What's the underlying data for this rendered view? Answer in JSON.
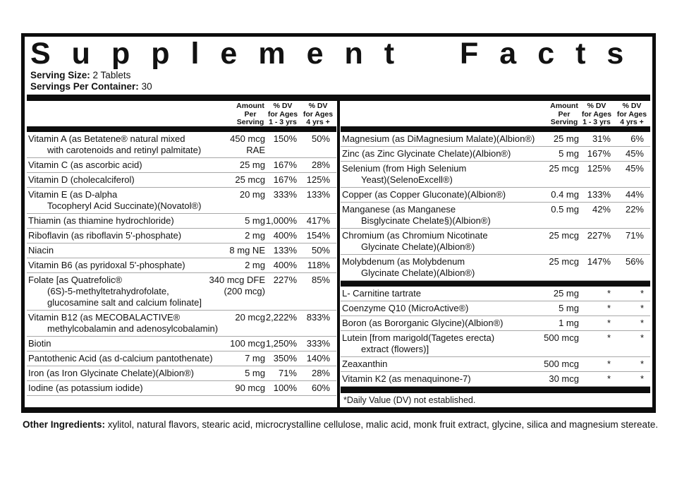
{
  "title": "Supplement Facts",
  "serving": {
    "size_label": "Serving Size:",
    "size_value": "2 Tablets",
    "container_label": "Servings Per Container:",
    "container_value": "30"
  },
  "columns": {
    "amount": "Amount\nPer\nServing",
    "dv_1_3": "% DV\nfor Ages\n1 - 3 yrs",
    "dv_4plus": "% DV\nfor Ages\n4 yrs +"
  },
  "left_table": {
    "rows": [
      {
        "name": "Vitamin A (as Betatene® natural mixed\nwith carotenoids and retinyl palmitate)",
        "amount": "450 mcg\nRAE",
        "dv1": "150%",
        "dv2": "50%"
      },
      {
        "name": "Vitamin C (as ascorbic acid)",
        "amount": "25 mg",
        "dv1": "167%",
        "dv2": "28%"
      },
      {
        "name": "Vitamin D (cholecalciferol)",
        "amount": "25 mcg",
        "dv1": "167%",
        "dv2": "125%"
      },
      {
        "name": "Vitamin E (as D-alpha\nTocopheryl Acid Succinate)(Novatol®)",
        "amount": "20 mg",
        "dv1": "333%",
        "dv2": "133%"
      },
      {
        "name": "Thiamin (as thiamine hydrochloride)",
        "amount": "5 mg",
        "dv1": "1,000%",
        "dv2": "417%"
      },
      {
        "name": "Riboflavin (as riboflavin 5'-phosphate)",
        "amount": "2 mg",
        "dv1": "400%",
        "dv2": "154%"
      },
      {
        "name": "Niacin",
        "amount": "8 mg NE",
        "dv1": "133%",
        "dv2": "50%"
      },
      {
        "name": "Vitamin B6 (as pyridoxal 5'-phosphate)",
        "amount": "2 mg",
        "dv1": "400%",
        "dv2": "118%"
      },
      {
        "name": "Folate [as Quatrefolic®\n(6S)-5-methyltetrahydrofolate,\nglucosamine salt and calcium folinate]",
        "amount": "340 mcg DFE\n(200 mcg)",
        "dv1": "227%",
        "dv2": "85%"
      },
      {
        "name": "Vitamin B12 (as MECOBALACTIVE®\nmethylcobalamin and adenosylcobalamin)",
        "amount": "20 mcg",
        "dv1": "2,222%",
        "dv2": "833%"
      },
      {
        "name": "Biotin",
        "amount": "100 mcg",
        "dv1": "1,250%",
        "dv2": "333%"
      },
      {
        "name": "Pantothenic Acid (as d-calcium pantothenate)",
        "amount": "7 mg",
        "dv1": "350%",
        "dv2": "140%"
      },
      {
        "name": "Iron (as Iron Glycinate Chelate)(Albion®)",
        "amount": "5 mg",
        "dv1": "71%",
        "dv2": "28%"
      },
      {
        "name": "Iodine (as potassium iodide)",
        "amount": "90 mcg",
        "dv1": "100%",
        "dv2": "60%"
      }
    ]
  },
  "right_table": {
    "mineral_rows": [
      {
        "name": "Magnesium (as DiMagnesium Malate)(Albion®)",
        "amount": "25 mg",
        "dv1": "31%",
        "dv2": "6%"
      },
      {
        "name": "Zinc (as Zinc Glycinate Chelate)(Albion®)",
        "amount": "5 mg",
        "dv1": "167%",
        "dv2": "45%"
      },
      {
        "name": "Selenium (from High Selenium\nYeast)(SelenoExcell®)",
        "amount": "25 mcg",
        "dv1": "125%",
        "dv2": "45%"
      },
      {
        "name": "Copper (as Copper Gluconate)(Albion®)",
        "amount": "0.4 mg",
        "dv1": "133%",
        "dv2": "44%"
      },
      {
        "name": "Manganese (as Manganese\nBisglycinate Chelate§)(Albion®)",
        "amount": "0.5 mg",
        "dv1": "42%",
        "dv2": "22%"
      },
      {
        "name": "Chromium (as Chromium Nicotinate\nGlycinate Chelate)(Albion®)",
        "amount": "25 mcg",
        "dv1": "227%",
        "dv2": "71%"
      },
      {
        "name": "Molybdenum (as Molybdenum\nGlycinate Chelate)(Albion®)",
        "amount": "25 mcg",
        "dv1": "147%",
        "dv2": "56%"
      }
    ],
    "other_rows": [
      {
        "name": "L- Carnitine tartrate",
        "amount": "25 mg",
        "dv1": "*",
        "dv2": "*"
      },
      {
        "name": "Coenzyme Q10 (MicroActive®)",
        "amount": "5 mg",
        "dv1": "*",
        "dv2": "*"
      },
      {
        "name": "Boron (as Bororganic Glycine)(Albion®)",
        "amount": "1 mg",
        "dv1": "*",
        "dv2": "*"
      },
      {
        "name": "Lutein [from marigold(Tagetes erecta)\nextract (flowers)]",
        "amount": "500 mcg",
        "dv1": "*",
        "dv2": "*"
      },
      {
        "name": "Zeaxanthin",
        "amount": "500 mcg",
        "dv1": "*",
        "dv2": "*"
      },
      {
        "name": "Vitamin K2 (as menaquinone-7)",
        "amount": "30 mcg",
        "dv1": "*",
        "dv2": "*"
      }
    ],
    "footnote": "*Daily Value (DV) not established."
  },
  "other_ingredients": {
    "label": "Other Ingredients:",
    "text": "xylitol, natural flavors, stearic acid, microcrystalline cellulose, malic acid, monk fruit extract, glycine, silica and magnesium stereate."
  }
}
